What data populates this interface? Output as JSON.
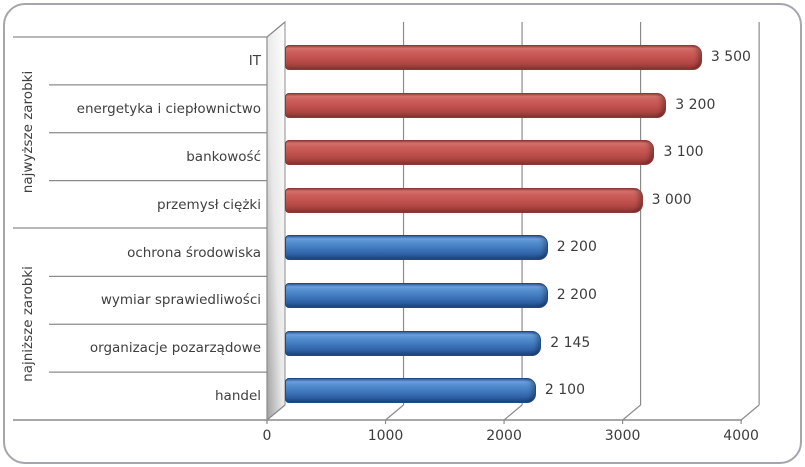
{
  "chart_data": {
    "type": "bar",
    "orientation": "horizontal",
    "style": "excel-3d-horizontal-bars",
    "title": "",
    "xlabel": "",
    "ylabel": "",
    "xlim": [
      0,
      4000
    ],
    "grid": true,
    "x_tick_labels": [
      "0",
      "1000",
      "2000",
      "3000",
      "4000"
    ],
    "x_ticks": [
      0,
      1000,
      2000,
      3000,
      4000
    ],
    "groups": [
      {
        "label": "najwyższe zarobki",
        "color": "#c0504d",
        "categories": [
          "IT",
          "energetyka i ciepłownictwo",
          "bankowość",
          "przemysł ciężki"
        ],
        "values": [
          3500,
          3200,
          3100,
          3000
        ],
        "value_labels": [
          "3 500",
          "3 200",
          "3 100",
          "3 000"
        ]
      },
      {
        "label": "najniższe zarobki",
        "color": "#3f77bc",
        "categories": [
          "ochrona środowiska",
          "wymiar sprawiedliwości",
          "organizacje pozarządowe",
          "handel"
        ],
        "values": [
          2200,
          2200,
          2145,
          2100
        ],
        "value_labels": [
          "2 200",
          "2 200",
          "2 145",
          "2 100"
        ]
      }
    ],
    "colors": {
      "bar_high": "#c0504d",
      "bar_low": "#3f77bc",
      "axis_line": "#8c8c8c",
      "text": "#3f3f3f",
      "frame_border": "#a5a5ad",
      "background": "#ffffff"
    }
  }
}
